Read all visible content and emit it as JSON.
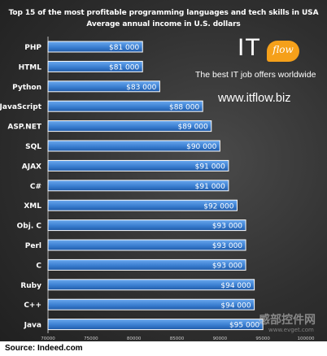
{
  "title_line1": "Top 15 of the most profitable programming languages and tech skills in USA",
  "title_line2": "Average annual income in U.S. dollars",
  "brand": {
    "logo_it": "IT",
    "logo_flow": "flow",
    "tagline": "The best IT job offers worldwide",
    "url": "www.itflow.biz",
    "accent_color": "#f5a01a"
  },
  "source": "Source: Indeed.com",
  "watermark": {
    "text": "感部控件网",
    "sub": "www.evget.com"
  },
  "colors": {
    "bar": "#3b7fd1",
    "bar_edge": "#ffffff",
    "text": "#ffffff"
  },
  "chart_data": {
    "type": "bar",
    "orientation": "horizontal",
    "categories": [
      "PHP",
      "HTML",
      "Python",
      "JavaScript",
      "ASP.NET",
      "SQL",
      "AJAX",
      "C#",
      "XML",
      "Obj. C",
      "Perl",
      "C",
      "Ruby",
      "C++",
      "Java"
    ],
    "values": [
      81000,
      81000,
      83000,
      88000,
      89000,
      90000,
      91000,
      91000,
      92000,
      93000,
      93000,
      93000,
      94000,
      94000,
      95000
    ],
    "value_labels": [
      "$81 000",
      "$81 000",
      "$83 000",
      "$88 000",
      "$89 000",
      "$90 000",
      "$91 000",
      "$91 000",
      "$92 000",
      "$93 000",
      "$93 000",
      "$93 000",
      "$94 000",
      "$94 000",
      "$95 000"
    ],
    "xlim": [
      70000,
      100000
    ],
    "x_ticks": [
      70000,
      75000,
      80000,
      85000,
      90000,
      95000,
      100000
    ],
    "x_tick_labels": [
      "70000",
      "75000",
      "80000",
      "85000",
      "90000",
      "95000",
      "100000"
    ],
    "title": "Top 15 of the most profitable programming languages and tech skills in USA",
    "subtitle": "Average annual income in U.S. dollars",
    "xlabel": "",
    "ylabel": "",
    "grid": false,
    "legend": "none"
  }
}
